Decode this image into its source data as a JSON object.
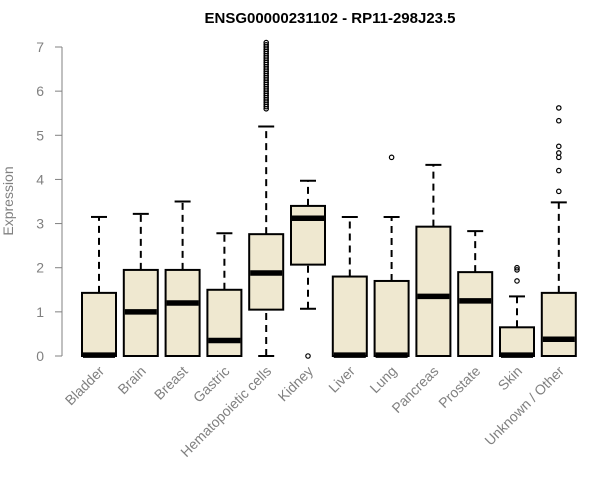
{
  "chart_data": {
    "type": "boxplot",
    "title": "ENSG00000231102 - RP11-298J23.5",
    "ylabel": "Expression",
    "xlabel": "",
    "ylim": [
      0,
      7
    ],
    "yticks": [
      0,
      1,
      2,
      3,
      4,
      5,
      6,
      7
    ],
    "box_fill": "#efe8d0",
    "categories": [
      "Bladder",
      "Brain",
      "Breast",
      "Gastric",
      "Hematopoietic cells",
      "Kidney",
      "Liver",
      "Lung",
      "Pancreas",
      "Prostate",
      "Skin",
      "Unknown / Other"
    ],
    "boxes": [
      {
        "q1": 0.0,
        "median": 0.02,
        "q3": 1.43,
        "whisker_low": 0.0,
        "whisker_high": 3.15,
        "outliers": []
      },
      {
        "q1": 0.0,
        "median": 1.0,
        "q3": 1.95,
        "whisker_low": 0.0,
        "whisker_high": 3.22,
        "outliers": []
      },
      {
        "q1": 0.0,
        "median": 1.2,
        "q3": 1.95,
        "whisker_low": 0.0,
        "whisker_high": 3.5,
        "outliers": []
      },
      {
        "q1": 0.0,
        "median": 0.35,
        "q3": 1.5,
        "whisker_low": 0.0,
        "whisker_high": 2.78,
        "outliers": []
      },
      {
        "q1": 1.05,
        "median": 1.88,
        "q3": 2.76,
        "whisker_low": 0.0,
        "whisker_high": 5.2,
        "outliers": [
          5.6,
          5.65,
          5.7,
          5.75,
          5.8,
          5.85,
          5.9,
          5.95,
          6.0,
          6.05,
          6.1,
          6.15,
          6.2,
          6.25,
          6.3,
          6.35,
          6.4,
          6.45,
          6.5,
          6.55,
          6.6,
          6.65,
          6.7,
          6.75,
          6.8,
          6.85,
          6.9,
          6.95,
          7.0,
          7.05,
          7.1
        ]
      },
      {
        "q1": 2.07,
        "median": 3.12,
        "q3": 3.4,
        "whisker_low": 1.07,
        "whisker_high": 3.97,
        "outliers": [
          0.0
        ]
      },
      {
        "q1": 0.0,
        "median": 0.02,
        "q3": 1.8,
        "whisker_low": 0.0,
        "whisker_high": 3.15,
        "outliers": []
      },
      {
        "q1": 0.0,
        "median": 0.02,
        "q3": 1.7,
        "whisker_low": 0.0,
        "whisker_high": 3.15,
        "outliers": [
          4.5
        ]
      },
      {
        "q1": 0.0,
        "median": 1.35,
        "q3": 2.93,
        "whisker_low": 0.0,
        "whisker_high": 4.33,
        "outliers": []
      },
      {
        "q1": 0.0,
        "median": 1.25,
        "q3": 1.9,
        "whisker_low": 0.0,
        "whisker_high": 2.83,
        "outliers": []
      },
      {
        "q1": 0.0,
        "median": 0.02,
        "q3": 0.65,
        "whisker_low": 0.0,
        "whisker_high": 1.35,
        "outliers": [
          1.7,
          1.95,
          2.0
        ]
      },
      {
        "q1": 0.0,
        "median": 0.38,
        "q3": 1.43,
        "whisker_low": 0.0,
        "whisker_high": 3.48,
        "outliers": [
          3.73,
          4.2,
          4.5,
          4.6,
          4.75,
          5.33,
          5.62
        ]
      }
    ]
  }
}
